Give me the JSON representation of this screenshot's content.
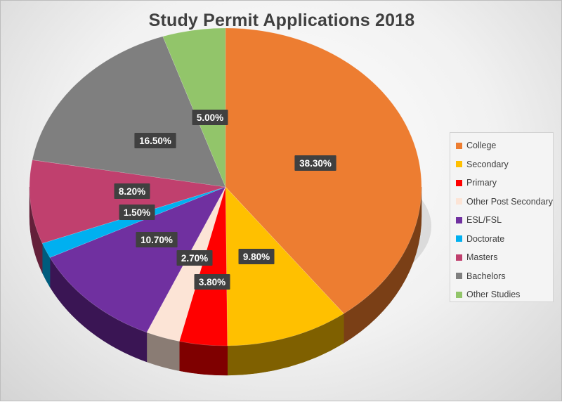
{
  "chart_data": {
    "type": "pie",
    "title": "Study Permit Applications 2018",
    "legend_position": "right",
    "slices": [
      {
        "label": "College",
        "value": 38.3,
        "display": "38.30%",
        "color": "#ED7D31",
        "side": "#7A3F16"
      },
      {
        "label": "Secondary",
        "value": 9.8,
        "display": "9.80%",
        "color": "#FFC000",
        "side": "#7F6000"
      },
      {
        "label": "Primary",
        "value": 3.8,
        "display": "3.80%",
        "color": "#FF0000",
        "side": "#7F0000"
      },
      {
        "label": "Other Post Secondary",
        "value": 2.7,
        "display": "2.70%",
        "color": "#FCE4D6",
        "side": "#8A7C74"
      },
      {
        "label": "ESL/FSL",
        "value": 10.7,
        "display": "10.70%",
        "color": "#7030A0",
        "side": "#3A1554"
      },
      {
        "label": "Doctorate",
        "value": 1.5,
        "display": "1.50%",
        "color": "#00B0F0",
        "side": "#005C7D"
      },
      {
        "label": "Masters",
        "value": 8.2,
        "display": "8.20%",
        "color": "#C0406E",
        "side": "#64203A"
      },
      {
        "label": "Bachelors",
        "value": 16.5,
        "display": "16.50%",
        "color": "#7F7F7F",
        "side": "#404040"
      },
      {
        "label": "Other Studies",
        "value": 5.0,
        "display": "5.00%",
        "color": "#92C56A",
        "side": "#4A6636"
      }
    ]
  }
}
